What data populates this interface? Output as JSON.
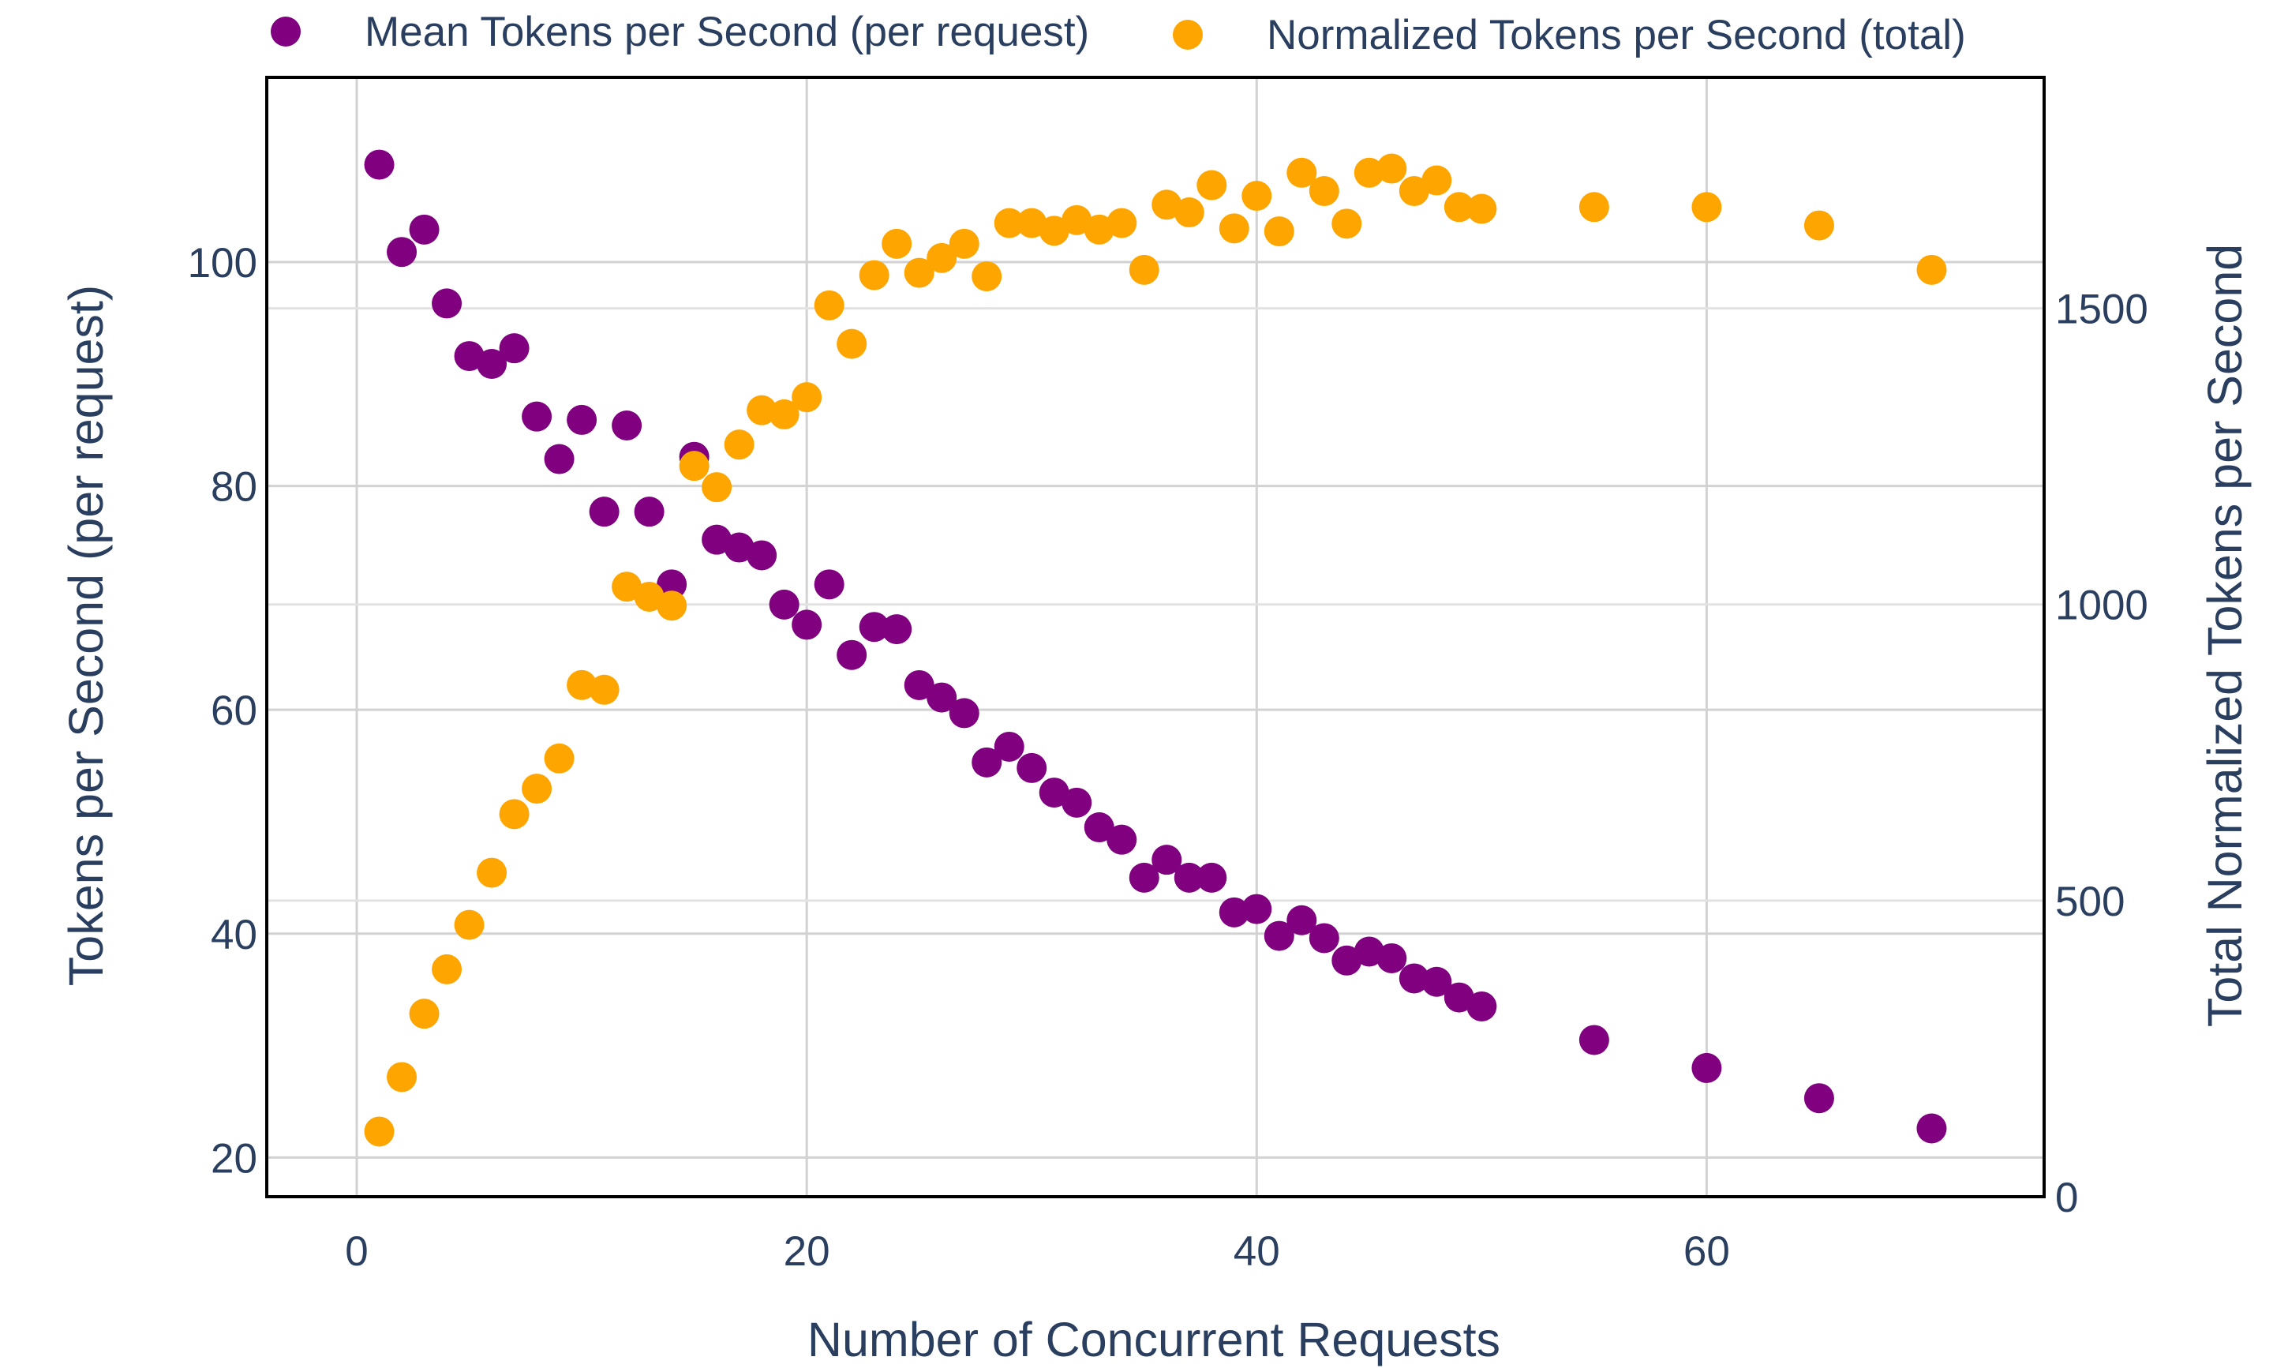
{
  "chart_data": {
    "type": "scatter",
    "xlabel": "Number of Concurrent Requests",
    "ylabel": "Tokens per Second (per request)",
    "y2label": "Total Normalized Tokens per Second",
    "xlim": [
      -4,
      75
    ],
    "ylim": [
      16.5,
      116.5
    ],
    "y2lim": [
      0,
      1890
    ],
    "xticks": [
      0,
      20,
      40,
      60
    ],
    "yticks": [
      20,
      40,
      60,
      80,
      100
    ],
    "y2ticks": [
      0,
      500,
      1000,
      1500
    ],
    "grid": true,
    "legend_position": "top",
    "series": [
      {
        "name": "Mean Tokens per Second (per request)",
        "axis": "left",
        "color": "#800080",
        "x": [
          1,
          2,
          3,
          4,
          5,
          6,
          7,
          8,
          9,
          10,
          11,
          12,
          13,
          14,
          15,
          16,
          17,
          18,
          19,
          20,
          21,
          22,
          23,
          24,
          25,
          26,
          27,
          28,
          29,
          30,
          31,
          32,
          33,
          34,
          35,
          36,
          37,
          38,
          39,
          40,
          41,
          42,
          43,
          44,
          45,
          46,
          47,
          48,
          49,
          50,
          55,
          60,
          65,
          70
        ],
        "y": [
          108.7,
          100.9,
          102.9,
          96.3,
          91.6,
          90.9,
          92.3,
          86.2,
          82.4,
          85.9,
          77.7,
          85.4,
          77.7,
          71.2,
          82.6,
          75.2,
          74.5,
          73.8,
          69.4,
          67.6,
          71.2,
          64.9,
          67.4,
          67.2,
          62.2,
          61.1,
          59.7,
          55.3,
          56.7,
          54.8,
          52.6,
          51.7,
          49.5,
          48.4,
          45.0,
          46.6,
          45.0,
          45.0,
          41.9,
          42.2,
          39.8,
          41.2,
          39.6,
          37.6,
          38.4,
          37.8,
          36.0,
          35.7,
          34.3,
          33.5,
          30.5,
          28.0,
          25.3,
          22.6
        ]
      },
      {
        "name": "Normalized Tokens per Second (total)",
        "axis": "right",
        "color": "#ffa500",
        "x": [
          1,
          2,
          3,
          4,
          5,
          6,
          7,
          8,
          9,
          10,
          11,
          12,
          13,
          14,
          15,
          16,
          17,
          18,
          19,
          20,
          21,
          22,
          23,
          24,
          25,
          26,
          27,
          28,
          29,
          30,
          31,
          32,
          33,
          34,
          35,
          36,
          37,
          38,
          39,
          40,
          41,
          42,
          43,
          44,
          45,
          46,
          47,
          48,
          49,
          50,
          55,
          60,
          65,
          70
        ],
        "y": [
          110,
          202,
          309,
          384,
          459,
          547,
          646,
          689,
          740,
          864,
          856,
          1030,
          1013,
          998,
          1234,
          1198,
          1270,
          1328,
          1321,
          1350,
          1505,
          1440,
          1556,
          1609,
          1560,
          1585,
          1609,
          1554,
          1644,
          1644,
          1631,
          1649,
          1633,
          1644,
          1565,
          1675,
          1662,
          1708,
          1635,
          1690,
          1630,
          1729,
          1698,
          1643,
          1729,
          1736,
          1698,
          1716,
          1671,
          1668,
          1671,
          1671,
          1640,
          1565
        ]
      }
    ]
  }
}
